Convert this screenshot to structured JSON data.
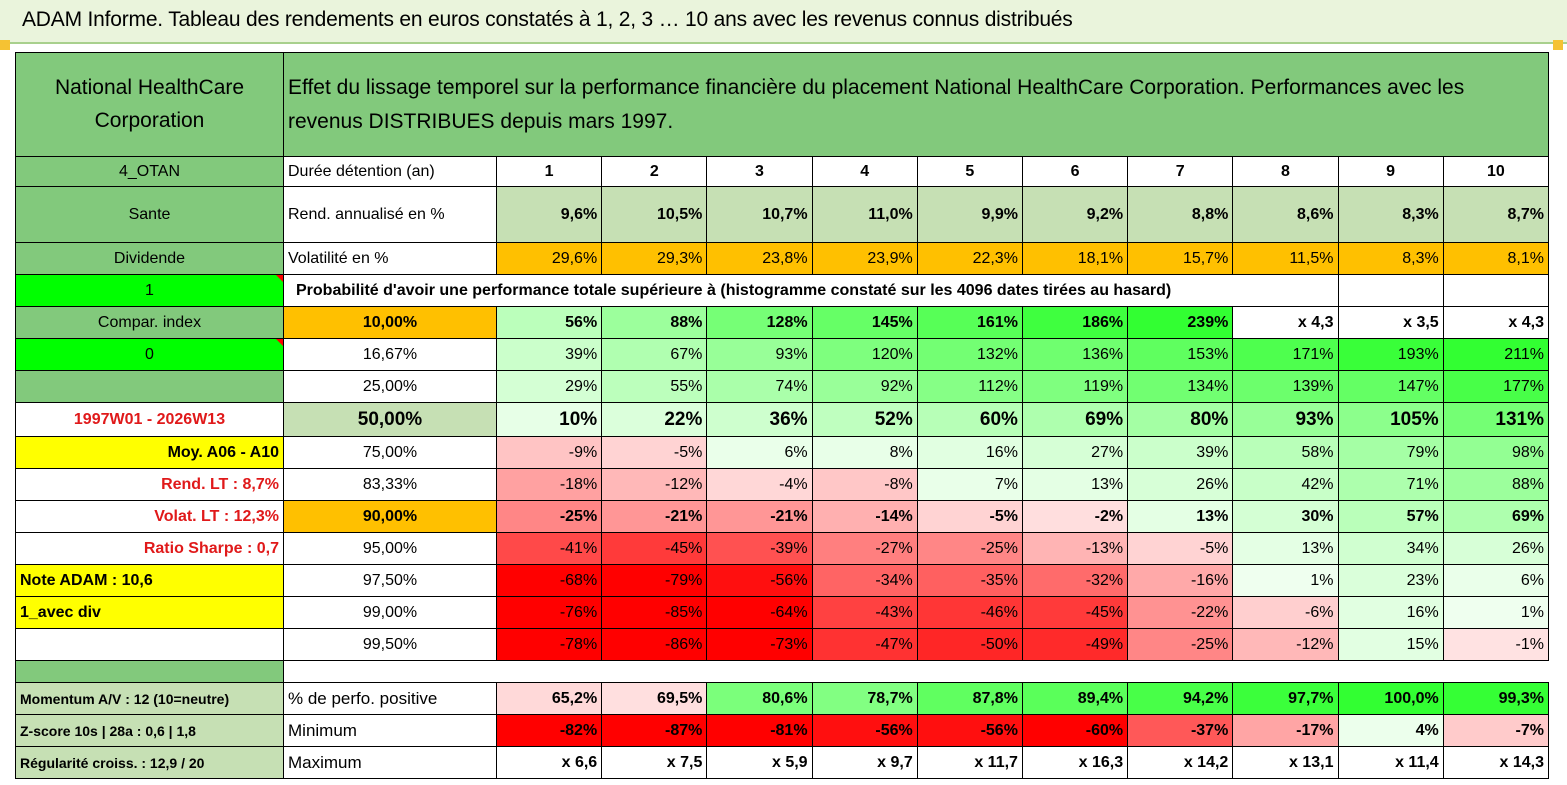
{
  "title": "ADAM Informe. Tableau des rendements en euros constatés à 1, 2, 3 … 10 ans avec les revenus connus distribués",
  "header": {
    "name": "National HealthCare Corporation",
    "description": "Effet du lissage temporel sur la performance financière du placement National HealthCare Corporation. Performances avec les revenus DISTRIBUES depuis mars 1997."
  },
  "left": {
    "code": "4_OTAN",
    "sector": "Sante",
    "type": "Dividende",
    "flag1": "1",
    "compar": "Compar. index",
    "flag0": "0",
    "period": "1997W01 - 2026W13",
    "moy": "Moy. A06 - A10",
    "rend_lt": "Rend. LT :   8,7%",
    "volat_lt": "Volat. LT :   12,3%",
    "sharpe": "Ratio Sharpe :    0,7",
    "note": "Note ADAM : 10,6",
    "avec_div": "1_avec div",
    "momentum": "Momentum A/V : 12 (10=neutre)",
    "zscore": "Z-score 10s | 28a : 0,6 | 1,8",
    "regularite": "Régularité croiss. : 12,9 / 20"
  },
  "rows": {
    "duree_label": "Durée détention (an)",
    "years": [
      "1",
      "2",
      "3",
      "4",
      "5",
      "6",
      "7",
      "8",
      "9",
      "10"
    ],
    "rend_label": "Rend. annualisé en %",
    "rend": [
      "9,6%",
      "10,5%",
      "10,7%",
      "11,0%",
      "9,9%",
      "9,2%",
      "8,8%",
      "8,6%",
      "8,3%",
      "8,7%"
    ],
    "vol_label": "Volatilité en %",
    "vol": [
      "29,6%",
      "29,3%",
      "23,8%",
      "23,9%",
      "22,3%",
      "18,1%",
      "15,7%",
      "11,5%",
      "8,3%",
      "8,1%"
    ],
    "proba_label": "Probabilité d'avoir une performance totale supérieure à (histogramme constaté sur les 4096 dates tirées au hasard)",
    "perf_label": "% de perfo. positive",
    "perf": [
      "65,2%",
      "69,5%",
      "80,6%",
      "78,7%",
      "87,8%",
      "89,4%",
      "94,2%",
      "97,7%",
      "100,0%",
      "99,3%"
    ],
    "min_label": "Minimum",
    "min": [
      "-82%",
      "-87%",
      "-81%",
      "-56%",
      "-56%",
      "-60%",
      "-37%",
      "-17%",
      "4%",
      "-7%"
    ],
    "max_label": "Maximum",
    "max": [
      "x 6,6",
      "x 7,5",
      "x 5,9",
      "x 9,7",
      "x 11,7",
      "x 16,3",
      "x 14,2",
      "x 13,1",
      "x 11,4",
      "x 14,3"
    ]
  },
  "quantiles": [
    {
      "p": "10,00%",
      "v": [
        "56%",
        "88%",
        "128%",
        "145%",
        "161%",
        "186%",
        "239%",
        "x 4,3",
        "x 3,5",
        "x 4,3"
      ]
    },
    {
      "p": "16,67%",
      "v": [
        "39%",
        "67%",
        "93%",
        "120%",
        "132%",
        "136%",
        "153%",
        "171%",
        "193%",
        "211%"
      ]
    },
    {
      "p": "25,00%",
      "v": [
        "29%",
        "55%",
        "74%",
        "92%",
        "112%",
        "119%",
        "134%",
        "139%",
        "147%",
        "177%"
      ]
    },
    {
      "p": "50,00%",
      "v": [
        "10%",
        "22%",
        "36%",
        "52%",
        "60%",
        "69%",
        "80%",
        "93%",
        "105%",
        "131%"
      ]
    },
    {
      "p": "75,00%",
      "v": [
        "-9%",
        "-5%",
        "6%",
        "8%",
        "16%",
        "27%",
        "39%",
        "58%",
        "79%",
        "98%"
      ]
    },
    {
      "p": "83,33%",
      "v": [
        "-18%",
        "-12%",
        "-4%",
        "-8%",
        "7%",
        "13%",
        "26%",
        "42%",
        "71%",
        "88%"
      ]
    },
    {
      "p": "90,00%",
      "v": [
        "-25%",
        "-21%",
        "-21%",
        "-14%",
        "-5%",
        "-2%",
        "13%",
        "30%",
        "57%",
        "69%"
      ]
    },
    {
      "p": "95,00%",
      "v": [
        "-41%",
        "-45%",
        "-39%",
        "-27%",
        "-25%",
        "-13%",
        "-5%",
        "13%",
        "34%",
        "26%"
      ]
    },
    {
      "p": "97,50%",
      "v": [
        "-68%",
        "-79%",
        "-56%",
        "-34%",
        "-35%",
        "-32%",
        "-16%",
        "1%",
        "23%",
        "6%"
      ]
    },
    {
      "p": "99,00%",
      "v": [
        "-76%",
        "-85%",
        "-64%",
        "-43%",
        "-46%",
        "-45%",
        "-22%",
        "-6%",
        "16%",
        "1%"
      ]
    },
    {
      "p": "99,50%",
      "v": [
        "-78%",
        "-86%",
        "-73%",
        "-47%",
        "-50%",
        "-49%",
        "-25%",
        "-12%",
        "15%",
        "-1%"
      ]
    }
  ],
  "colors": {
    "header_green": "#82c97c",
    "light_green": "#c6e0b4",
    "orange": "#ffc000",
    "bright_green": "#00ff00",
    "yellow": "#ffff00",
    "label_red": "#e0191a"
  }
}
